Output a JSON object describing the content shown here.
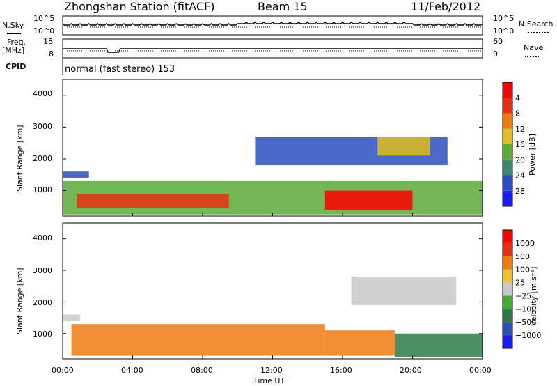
{
  "header": {
    "station": "Zhongshan Station (fitACF)",
    "beam": "Beam 15",
    "date": "11/Feb/2012"
  },
  "strips": {
    "nsky_label": "N.Sky",
    "nsearch_label": "N.Search",
    "noise_ticks": [
      "10^5",
      "10^0"
    ],
    "freq_label": "Freq.",
    "freq_unit": "[MHz]",
    "freq_ticks": [
      "18",
      "8"
    ],
    "nave_label": "Nave",
    "nave_ticks": [
      "60",
      "0"
    ],
    "cpid_label": "CPID",
    "cpid_value": "normal (fast stereo) 153"
  },
  "chart_data": [
    {
      "type": "heatmap",
      "name": "power",
      "ylabel": "Slant Range [km]",
      "xlabel": "",
      "x_ticks": [
        "00:00",
        "04:00",
        "08:00",
        "12:00",
        "16:00",
        "20:00",
        "00:00"
      ],
      "xlim_hours": [
        0,
        24
      ],
      "y_ticks": [
        1000,
        2000,
        3000,
        4000
      ],
      "ylim": [
        200,
        4500
      ],
      "colorbar": {
        "label": "Power [dB]",
        "ticks": [
          "4",
          "8",
          "12",
          "16",
          "20",
          "24",
          "28"
        ],
        "colors": [
          "#1a1aff",
          "#2a4fc0",
          "#3a8a6a",
          "#5aaa3a",
          "#e0c020",
          "#f07a10",
          "#e83010",
          "#ff0000"
        ]
      },
      "regions": [
        {
          "t0": 0.0,
          "t1": 24.0,
          "r0": 250,
          "r1": 1300,
          "level": 3
        },
        {
          "t0": 0.8,
          "t1": 9.5,
          "r0": 450,
          "r1": 900,
          "level": 6
        },
        {
          "t0": 15.0,
          "t1": 20.0,
          "r0": 400,
          "r1": 1000,
          "level": 7
        },
        {
          "t0": 0.0,
          "t1": 1.5,
          "r0": 1400,
          "r1": 1600,
          "level": 1
        },
        {
          "t0": 11.0,
          "t1": 22.0,
          "r0": 1800,
          "r1": 2700,
          "level": 1
        },
        {
          "t0": 18.0,
          "t1": 21.0,
          "r0": 2100,
          "r1": 2700,
          "level": 4
        }
      ]
    },
    {
      "type": "heatmap",
      "name": "velocity",
      "ylabel": "Slant Range [km]",
      "xlabel": "Time UT",
      "x_ticks": [
        "00:00",
        "04:00",
        "08:00",
        "12:00",
        "16:00",
        "20:00",
        "00:00"
      ],
      "xlim_hours": [
        0,
        24
      ],
      "y_ticks": [
        1000,
        2000,
        3000,
        4000
      ],
      "ylim": [
        200,
        4500
      ],
      "colorbar": {
        "label": "Velocity [m s⁻¹]",
        "ticks": [
          "1000",
          "500",
          "100",
          "25",
          "−25",
          "−100",
          "−500",
          "−1000"
        ],
        "colors": [
          "#1a1aee",
          "#2a52b8",
          "#2e7a4a",
          "#44aa2a",
          "#c8c8c8",
          "#f0c030",
          "#f07a10",
          "#e83010",
          "#ff0000"
        ]
      },
      "regions": [
        {
          "t0": 0.5,
          "t1": 15.0,
          "r0": 300,
          "r1": 1300,
          "level": 6
        },
        {
          "t0": 15.0,
          "t1": 19.0,
          "r0": 300,
          "r1": 1100,
          "level": 6
        },
        {
          "t0": 19.0,
          "t1": 24.0,
          "r0": 250,
          "r1": 1000,
          "level": 2
        },
        {
          "t0": 16.5,
          "t1": 22.5,
          "r0": 1900,
          "r1": 2800,
          "level": 4
        },
        {
          "t0": 0.0,
          "t1": 1.0,
          "r0": 1400,
          "r1": 1600,
          "level": 4
        }
      ]
    }
  ]
}
